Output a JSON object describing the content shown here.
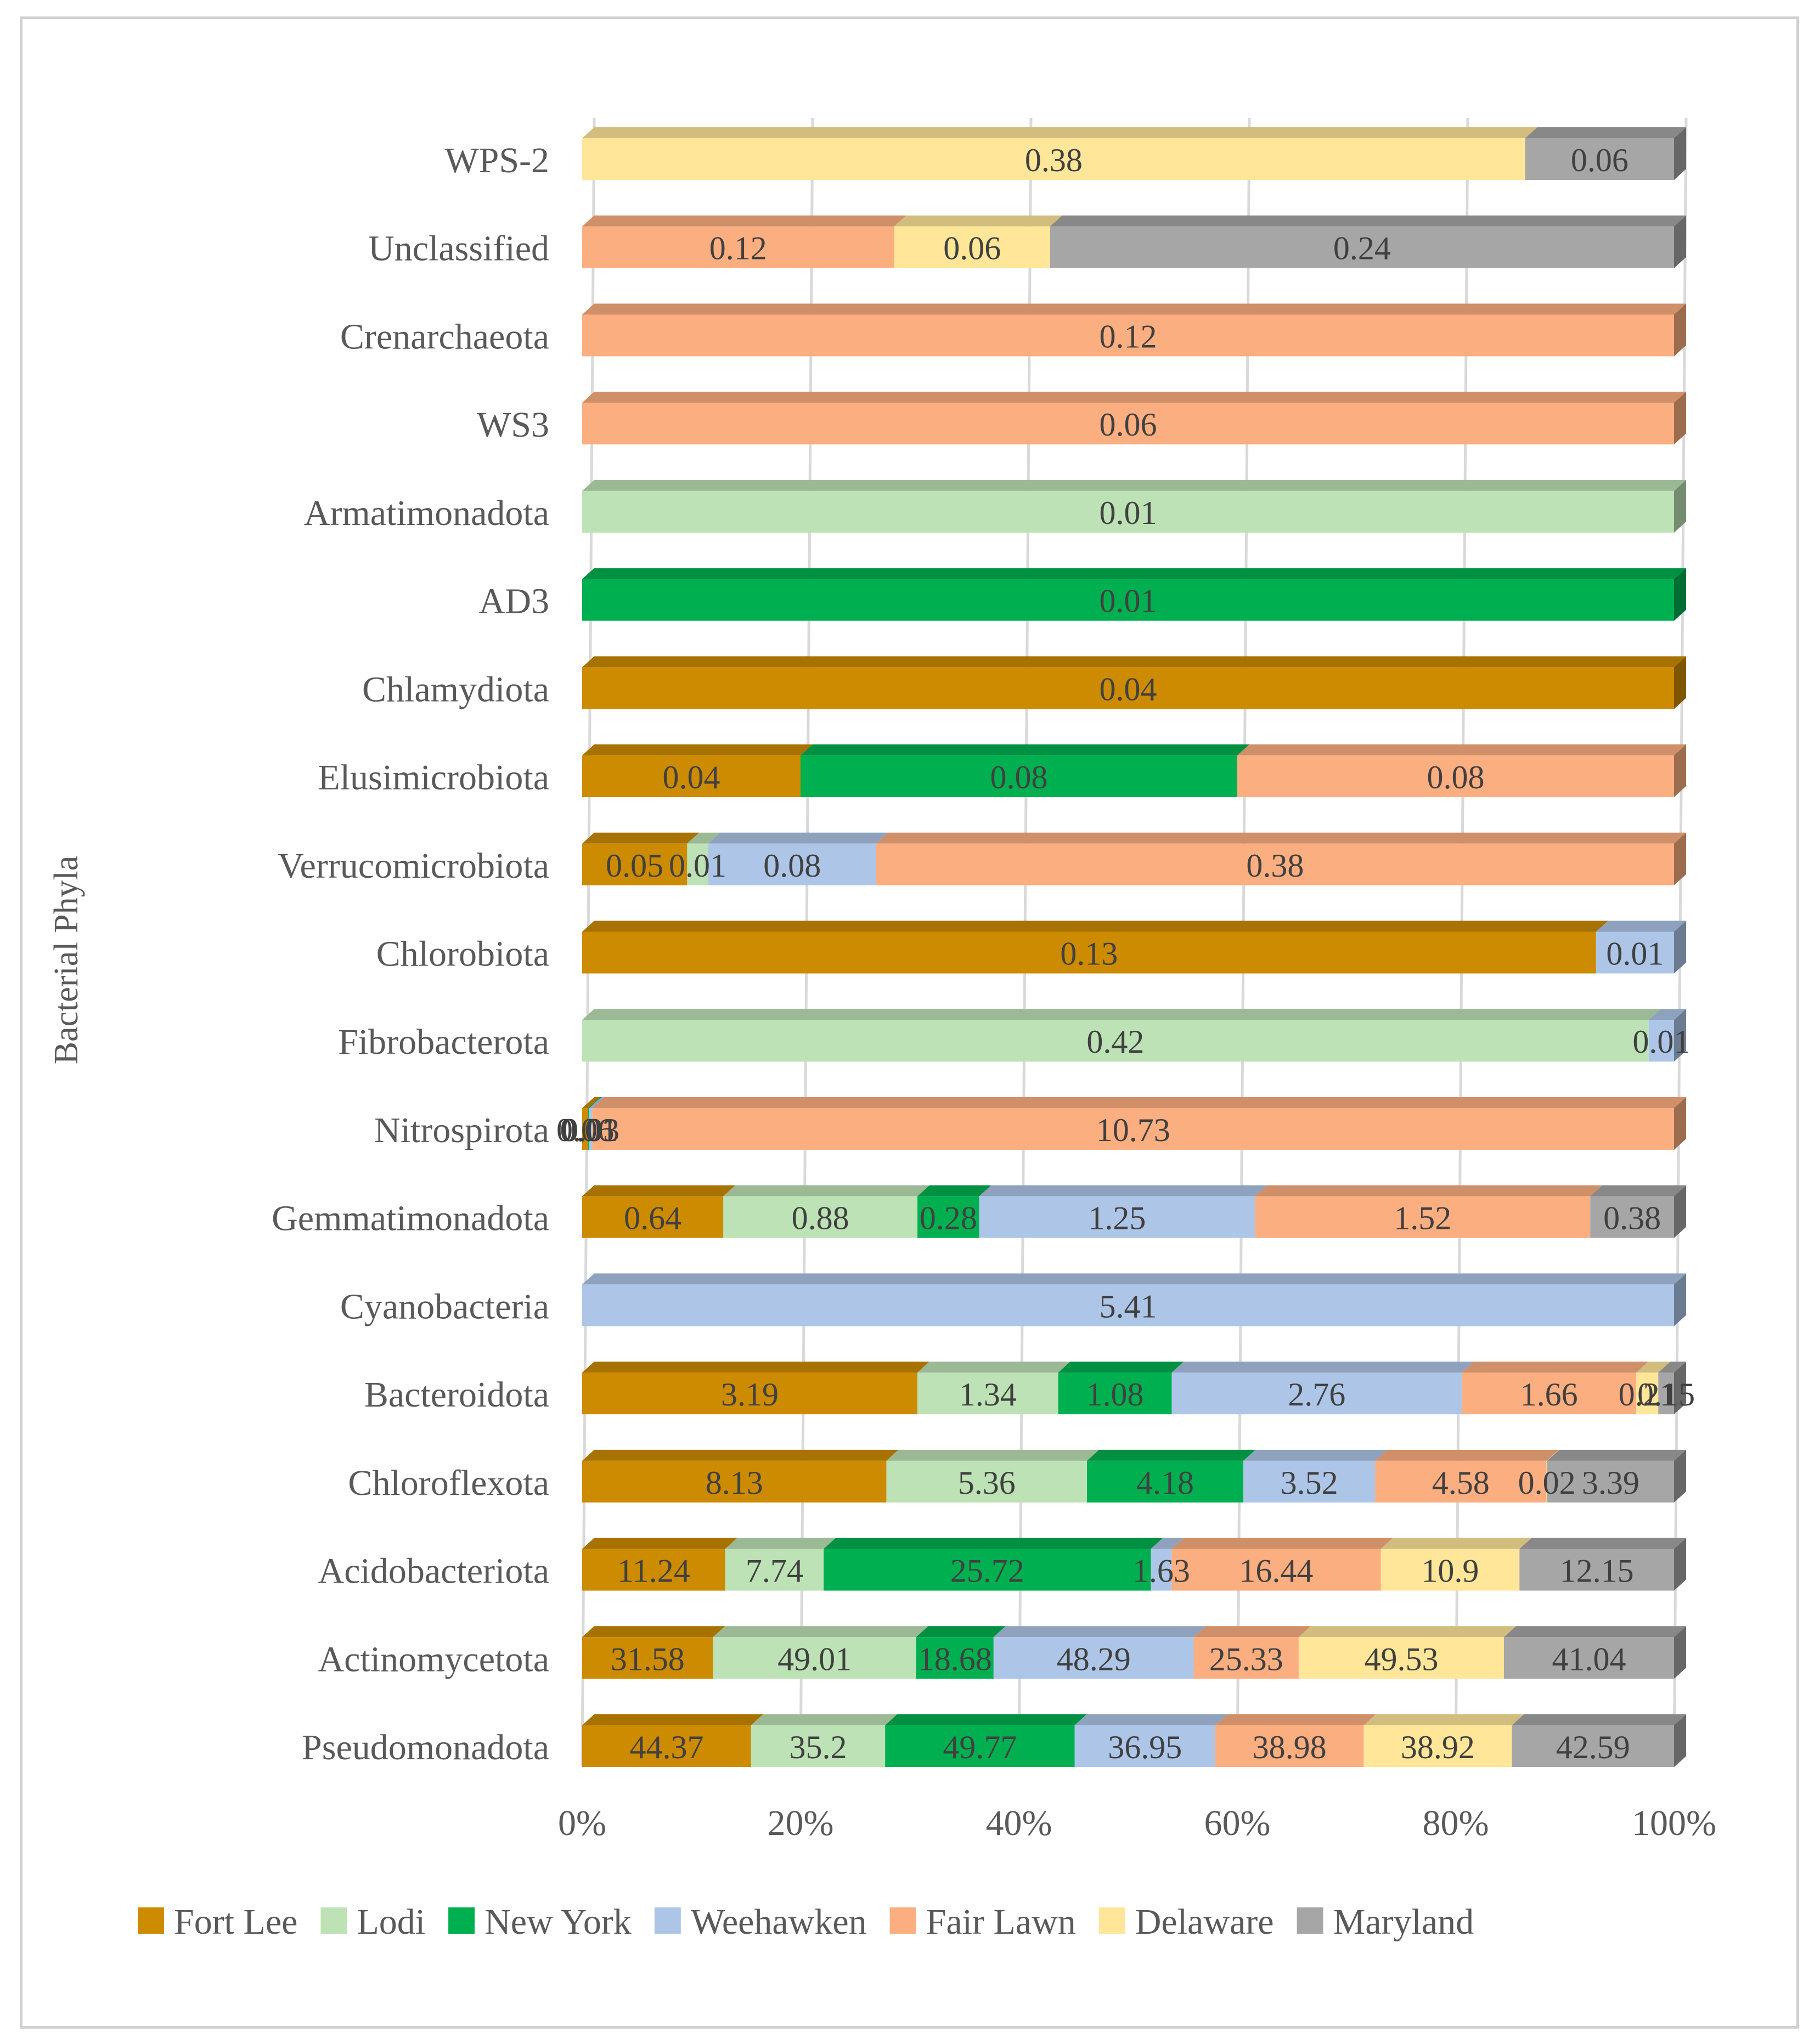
{
  "chart_data": {
    "type": "bar",
    "orientation": "horizontal",
    "stacking": "percent",
    "ylabel": "Bacterial Phyla",
    "xlabel": "",
    "xlim": [
      0,
      100
    ],
    "x_ticks": [
      "0%",
      "20%",
      "40%",
      "60%",
      "80%",
      "100%"
    ],
    "grid": true,
    "legend_position": "bottom",
    "categories": [
      "Pseudomonadota",
      "Actinomycetota",
      "Acidobacteriota",
      "Chloroflexota",
      "Bacteroidota",
      "Cyanobacteria",
      "Gemmatimonadota",
      "Nitrospirota",
      "Fibrobacterota",
      "Chlorobiota",
      "Verrucomicrobiota",
      "Elusimicrobiota",
      "Chlamydiota",
      "AD3",
      "Armatimonadota",
      "WS3",
      "Crenarchaeota",
      "Unclassified",
      "WPS-2"
    ],
    "series": [
      {
        "name": "Fort Lee",
        "color": "#cc8b00",
        "values": [
          44.37,
          31.58,
          11.24,
          8.13,
          3.19,
          null,
          0.64,
          0.06,
          null,
          0.13,
          0.05,
          0.04,
          0.04,
          null,
          null,
          null,
          null,
          null,
          null
        ]
      },
      {
        "name": "Lodi",
        "color": "#bde2b5",
        "values": [
          35.2,
          49.01,
          7.74,
          5.36,
          1.34,
          null,
          0.88,
          null,
          0.42,
          null,
          0.01,
          null,
          null,
          null,
          0.01,
          null,
          null,
          null,
          null
        ]
      },
      {
        "name": "New York",
        "color": "#00b050",
        "values": [
          49.77,
          18.68,
          25.72,
          4.18,
          1.08,
          null,
          0.28,
          0.01,
          null,
          null,
          null,
          0.08,
          null,
          0.01,
          null,
          null,
          null,
          null,
          null
        ]
      },
      {
        "name": "Weehawken",
        "color": "#adc6e8",
        "values": [
          36.95,
          48.29,
          1.63,
          3.52,
          2.76,
          5.41,
          1.25,
          0.03,
          0.01,
          0.01,
          0.08,
          null,
          null,
          null,
          null,
          null,
          null,
          null,
          null
        ]
      },
      {
        "name": "Fair Lawn",
        "color": "#fbae80",
        "values": [
          38.98,
          25.33,
          16.44,
          4.58,
          1.66,
          null,
          1.52,
          10.73,
          null,
          null,
          0.38,
          0.08,
          null,
          null,
          null,
          0.06,
          0.12,
          0.12,
          null
        ]
      },
      {
        "name": "Delaware",
        "color": "#ffe699",
        "values": [
          38.92,
          49.53,
          10.9,
          0.02,
          0.21,
          null,
          null,
          null,
          null,
          null,
          null,
          null,
          null,
          null,
          null,
          null,
          null,
          0.06,
          0.38
        ]
      },
      {
        "name": "Maryland",
        "color": "#a6a6a6",
        "values": [
          42.59,
          41.04,
          12.15,
          3.39,
          0.15,
          null,
          0.38,
          null,
          null,
          null,
          null,
          null,
          null,
          null,
          null,
          null,
          null,
          0.24,
          0.06
        ]
      }
    ],
    "display_labels": [
      [
        "44.37",
        "31.58",
        "11.24",
        "8.13",
        "3.19",
        null,
        "0.64",
        "0.06",
        null,
        "0.13",
        "0.05",
        "0.04",
        "0.04",
        null,
        null,
        null,
        null,
        null,
        null
      ],
      [
        "35.2",
        "49.01",
        "7.74",
        "5.36",
        "1.34",
        null,
        "0.88",
        null,
        "0.42",
        null,
        "0.01",
        null,
        null,
        null,
        "0.01",
        null,
        null,
        null,
        null
      ],
      [
        "49.77",
        "18.68",
        "25.72",
        "4.18",
        "1.08",
        null,
        "0.28",
        "0.01",
        null,
        null,
        null,
        "0.08",
        null,
        "0.01",
        null,
        null,
        null,
        null,
        null
      ],
      [
        "36.95",
        "48.29",
        "1.63",
        "3.52",
        "2.76",
        "5.41",
        "1.25",
        "0.03",
        "0.01",
        "0.01",
        "0.08",
        null,
        null,
        null,
        null,
        null,
        null,
        null,
        null
      ],
      [
        "38.98",
        "25.33",
        "16.44",
        "4.58",
        "1.66",
        null,
        "1.52",
        "10.73",
        null,
        null,
        "0.38",
        "0.08",
        null,
        null,
        null,
        "0.06",
        "0.12",
        "0.12",
        null
      ],
      [
        "38.92",
        "49.53",
        "10.9",
        "0.02",
        "0.21",
        null,
        null,
        null,
        null,
        null,
        null,
        null,
        null,
        null,
        null,
        null,
        null,
        "0.06",
        "0.38"
      ],
      [
        "42.59",
        "41.04",
        "12.15",
        "3.39",
        "0.15",
        null,
        "0.38",
        null,
        null,
        null,
        null,
        null,
        null,
        null,
        null,
        null,
        null,
        "0.24",
        "0.06"
      ]
    ]
  }
}
